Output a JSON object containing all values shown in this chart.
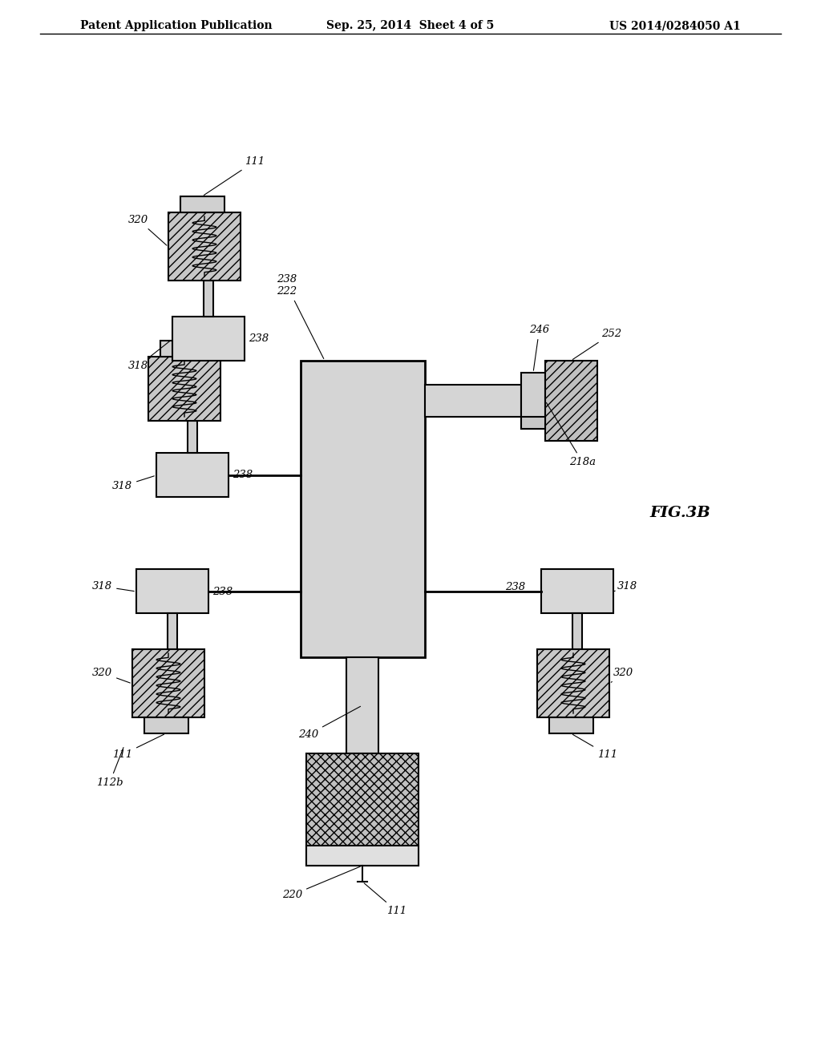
{
  "title_left": "Patent Application Publication",
  "title_center": "Sep. 25, 2014  Sheet 4 of 5",
  "title_right": "US 2014/0284050 A1",
  "fig_label": "FIG.3B",
  "background_color": "#ffffff",
  "line_color": "#000000",
  "dot_fill": "#d0d0d0",
  "hatch_fill": "#b0b0b0",
  "labels": {
    "111_top": "111",
    "320_top": "320",
    "238_top_right": "238",
    "318_top": "318",
    "238_222": "238\n222",
    "246": "246",
    "252": "252",
    "218a": "218a",
    "318_mid_left": "318",
    "238_mid_left": "238",
    "318_mid_right": "318",
    "238_mid_right": "238",
    "320_bot_left": "320",
    "111_bot_left": "111",
    "240": "240",
    "220": "220",
    "111_bot_center": "111",
    "320_bot_right": "320",
    "111_bot_right": "111",
    "112b": "112b"
  }
}
